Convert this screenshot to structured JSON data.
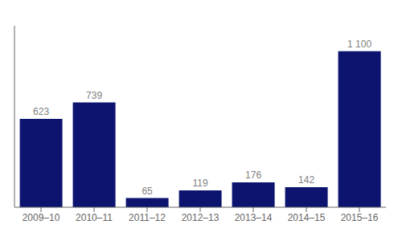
{
  "chart_data": {
    "type": "bar",
    "categories": [
      "2009–10",
      "2010–11",
      "2011–12",
      "2012–13",
      "2013–14",
      "2014–15",
      "2015–16"
    ],
    "values": [
      623,
      739,
      65,
      119,
      176,
      142,
      1100
    ],
    "value_labels": [
      "623",
      "739",
      "65",
      "119",
      "176",
      "142",
      "1 100"
    ],
    "color": "#0d1470",
    "ylim": [
      0,
      1280
    ],
    "yticks": [],
    "grid": false,
    "data_labels": true,
    "tick_labels": "x"
  }
}
